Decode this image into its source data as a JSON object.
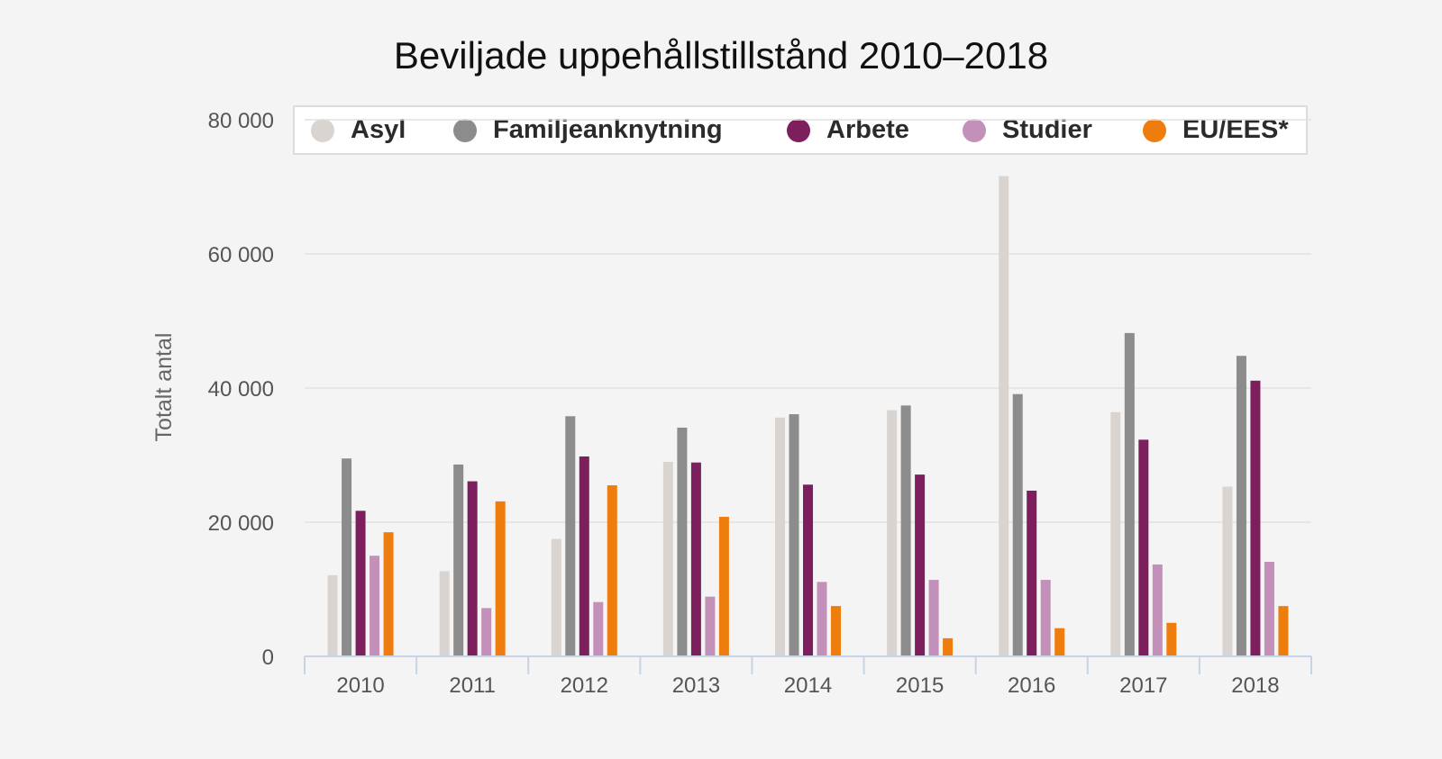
{
  "chart_data": {
    "type": "bar",
    "title": "Beviljade uppehållstillstånd 2010–2018",
    "xlabel": "",
    "ylabel": "Totalt antal",
    "ylim": [
      0,
      80000
    ],
    "yticks": [
      "0",
      "20 000",
      "40 000",
      "60 000",
      "80 000"
    ],
    "ytick_values": [
      0,
      20000,
      40000,
      60000,
      80000
    ],
    "grid": true,
    "legend_position": "top",
    "categories": [
      "2010",
      "2011",
      "2012",
      "2013",
      "2014",
      "2015",
      "2016",
      "2017",
      "2018"
    ],
    "series": [
      {
        "name": "Asyl",
        "color": "#d9d4d0",
        "values": [
          12100,
          12700,
          17500,
          29000,
          35600,
          36700,
          71600,
          36400,
          25300
        ]
      },
      {
        "name": "Familjeanknytning",
        "color": "#8c8c8c",
        "values": [
          29500,
          28600,
          35800,
          34100,
          36100,
          37400,
          39100,
          48200,
          44800
        ]
      },
      {
        "name": "Arbete",
        "color": "#7d1f5d",
        "values": [
          21700,
          26100,
          29800,
          28900,
          25600,
          27100,
          24700,
          32300,
          41100
        ]
      },
      {
        "name": "Studier",
        "color": "#c290b8",
        "values": [
          15000,
          7200,
          8100,
          8900,
          11100,
          11400,
          11400,
          13700,
          14100
        ]
      },
      {
        "name": "EU/EES*",
        "color": "#ee7d0d",
        "values": [
          18500,
          23100,
          25500,
          20800,
          7500,
          2700,
          4200,
          5000,
          7500
        ]
      }
    ]
  }
}
